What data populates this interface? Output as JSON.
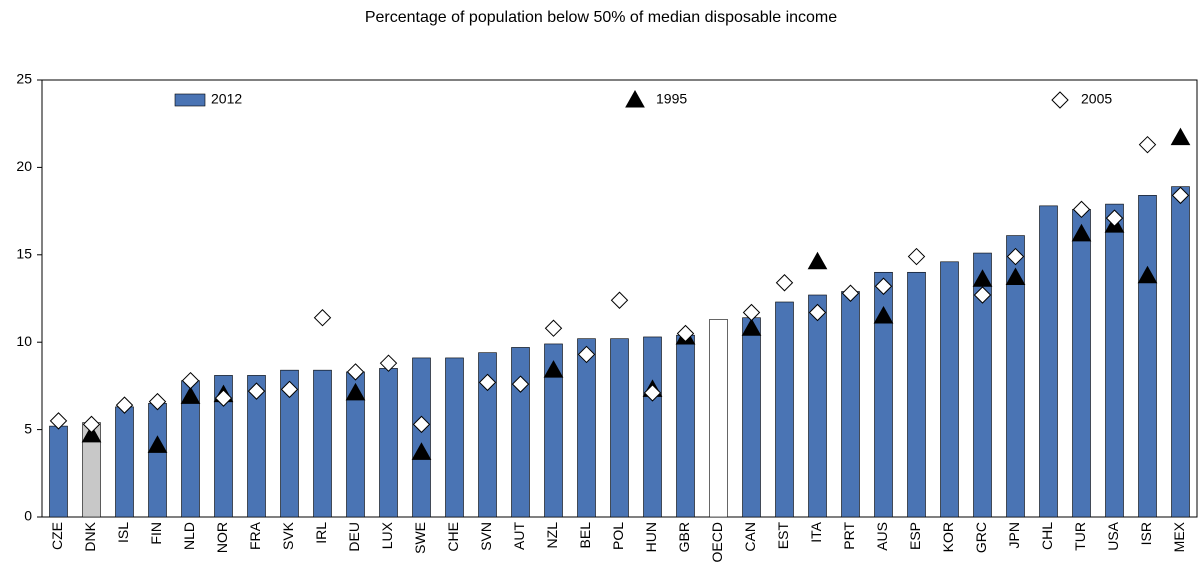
{
  "chart_data": {
    "type": "bar",
    "title": "Percentage of population below 50% of median disposable income",
    "categories": [
      "CZE",
      "DNK",
      "ISL",
      "FIN",
      "NLD",
      "NOR",
      "FRA",
      "SVK",
      "IRL",
      "DEU",
      "LUX",
      "SWE",
      "CHE",
      "SVN",
      "AUT",
      "NZL",
      "BEL",
      "POL",
      "HUN",
      "GBR",
      "OECD",
      "CAN",
      "EST",
      "ITA",
      "PRT",
      "AUS",
      "ESP",
      "KOR",
      "GRC",
      "JPN",
      "CHL",
      "TUR",
      "USA",
      "ISR",
      "MEX"
    ],
    "series": [
      {
        "name": "2012",
        "kind": "bar",
        "color": "#4a74b4",
        "bar_colors": [
          "#4a74b4",
          "#c8c8c8",
          "#4a74b4",
          "#4a74b4",
          "#4a74b4",
          "#4a74b4",
          "#4a74b4",
          "#4a74b4",
          "#4a74b4",
          "#4a74b4",
          "#4a74b4",
          "#4a74b4",
          "#4a74b4",
          "#4a74b4",
          "#4a74b4",
          "#4a74b4",
          "#4a74b4",
          "#4a74b4",
          "#4a74b4",
          "#4a74b4",
          "#ffffff",
          "#4a74b4",
          "#4a74b4",
          "#4a74b4",
          "#4a74b4",
          "#4a74b4",
          "#4a74b4",
          "#4a74b4",
          "#4a74b4",
          "#4a74b4",
          "#4a74b4",
          "#4a74b4",
          "#4a74b4",
          "#4a74b4",
          "#4a74b4"
        ],
        "values": [
          5.2,
          5.4,
          6.3,
          6.5,
          7.8,
          8.1,
          8.1,
          8.4,
          8.4,
          8.3,
          8.5,
          9.1,
          9.1,
          9.4,
          9.7,
          9.9,
          10.2,
          10.2,
          10.3,
          10.4,
          11.3,
          11.4,
          12.3,
          12.7,
          12.9,
          14.0,
          14.0,
          14.6,
          15.1,
          16.1,
          17.8,
          17.6,
          17.9,
          18.4,
          18.9
        ]
      },
      {
        "name": "1995",
        "kind": "triangle",
        "color": "#000000",
        "values": [
          null,
          4.7,
          null,
          4.1,
          6.9,
          7.0,
          null,
          null,
          null,
          7.1,
          null,
          3.7,
          null,
          null,
          null,
          8.4,
          null,
          null,
          7.3,
          10.3,
          null,
          10.8,
          null,
          14.6,
          null,
          11.5,
          null,
          null,
          13.6,
          13.7,
          null,
          16.2,
          16.7,
          13.8,
          21.7
        ]
      },
      {
        "name": "2005",
        "kind": "diamond",
        "color": "#ffffff",
        "values": [
          5.5,
          5.3,
          6.4,
          6.6,
          7.8,
          6.8,
          7.2,
          7.3,
          11.4,
          8.3,
          8.8,
          5.3,
          null,
          7.7,
          7.6,
          10.8,
          9.3,
          12.4,
          7.1,
          10.5,
          null,
          11.7,
          13.4,
          11.7,
          12.8,
          13.2,
          14.9,
          null,
          12.7,
          14.9,
          null,
          17.6,
          17.1,
          21.3,
          18.4
        ]
      }
    ],
    "ylim": [
      0,
      25
    ],
    "yticks": [
      0,
      5,
      10,
      15,
      20,
      25
    ]
  }
}
